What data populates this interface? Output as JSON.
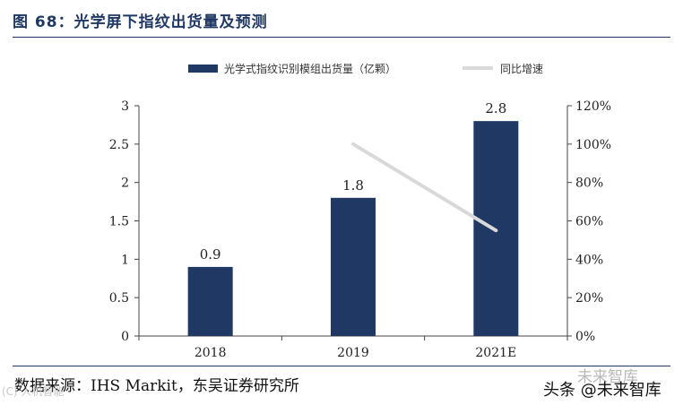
{
  "header": {
    "title": "图 68：光学屏下指纹出货量及预测"
  },
  "footer": {
    "source": "数据来源：IHS Markit，东吴证券研究所",
    "watermark_left": "(C) 人机智能",
    "watermark_right_top": "未来智库",
    "watermark_right_bottom": "头条 @未来智库"
  },
  "colors": {
    "bar": "#1f3864",
    "growth_line": "#d9d9d9",
    "title": "#1f3864"
  },
  "chart_data": {
    "type": "bar",
    "title": "光学屏下指纹出货量及预测",
    "categories": [
      "2018",
      "2019",
      "2021E"
    ],
    "series": [
      {
        "name": "光学式指纹识别模组出货量（亿颗）",
        "type": "bar",
        "axis": "left",
        "values": [
          0.9,
          1.8,
          2.8
        ],
        "data_labels": [
          "0.9",
          "1.8",
          "2.8"
        ]
      },
      {
        "name": "同比增速",
        "type": "line",
        "axis": "right",
        "values": [
          null,
          1.0,
          0.55
        ]
      }
    ],
    "y_left": {
      "min": 0,
      "max": 3,
      "ticks": [
        0,
        0.5,
        1,
        1.5,
        2,
        2.5,
        3
      ],
      "tick_labels": [
        "0",
        "0.5",
        "1",
        "1.5",
        "2",
        "2.5",
        "3"
      ]
    },
    "y_right": {
      "min": 0,
      "max": 1.2,
      "ticks": [
        0,
        0.2,
        0.4,
        0.6,
        0.8,
        1.0,
        1.2
      ],
      "tick_labels": [
        "0%",
        "20%",
        "40%",
        "60%",
        "80%",
        "100%",
        "120%"
      ]
    },
    "legend_position": "top-center",
    "grid": false
  }
}
